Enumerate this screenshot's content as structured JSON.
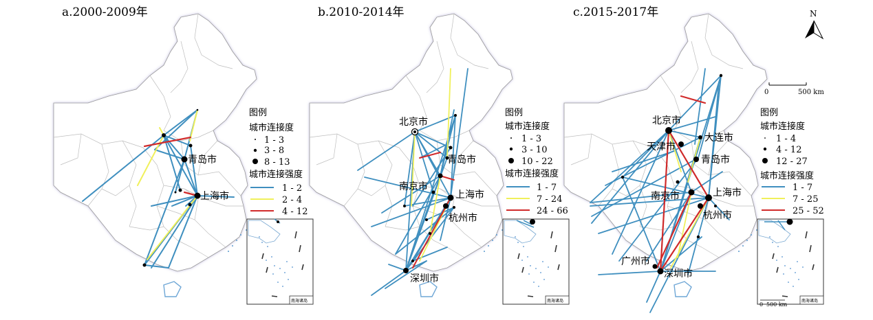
{
  "panels": [
    {
      "id": "a",
      "title": "a.2000-2009年",
      "legend": {
        "heading": "图例",
        "degree_title": "城市连接度",
        "degree_classes": [
          "1 - 3",
          "3 - 8",
          "8 - 13"
        ],
        "strength_title": "城市连接强度",
        "strength_classes": [
          "1 - 2",
          "2 - 4",
          "4 - 12"
        ]
      },
      "city_labels": [
        "青岛市",
        "上海市"
      ]
    },
    {
      "id": "b",
      "title": "b.2010-2014年",
      "legend": {
        "heading": "图例",
        "degree_title": "城市连接度",
        "degree_classes": [
          "1 - 3",
          "3 - 10",
          "10 - 22"
        ],
        "strength_title": "城市连接强度",
        "strength_classes": [
          "1 - 7",
          "7 - 24",
          "24 - 66"
        ]
      },
      "city_labels": [
        "北京市",
        "青岛市",
        "南京市",
        "上海市",
        "杭州市",
        "深圳市"
      ]
    },
    {
      "id": "c",
      "title": "c.2015-2017年",
      "legend": {
        "heading": "图例",
        "degree_title": "城市连接度",
        "degree_classes": [
          "1 - 4",
          "4 - 12",
          "12 - 27"
        ],
        "strength_title": "城市连接强度",
        "strength_classes": [
          "1 - 7",
          "7 - 25",
          "25 - 52"
        ]
      },
      "city_labels": [
        "北京市",
        "天津市",
        "大连市",
        "青岛市",
        "南京市",
        "上海市",
        "杭州市",
        "广州市",
        "深圳市"
      ]
    }
  ],
  "north_arrow": {
    "label": "N"
  },
  "scale_bar": {
    "zero": "0",
    "distance": "500 km"
  },
  "inset": {
    "label": "南海诸岛",
    "scale_zero": "0",
    "scale_distance": "500 km"
  },
  "colors": {
    "strength_low": "#3f8fbf",
    "strength_mid": "#f0f05a",
    "strength_high": "#d12a2a",
    "boundary": "#b9b9b9",
    "coast_shadow": "#b5b0d8",
    "node": "#000000"
  }
}
